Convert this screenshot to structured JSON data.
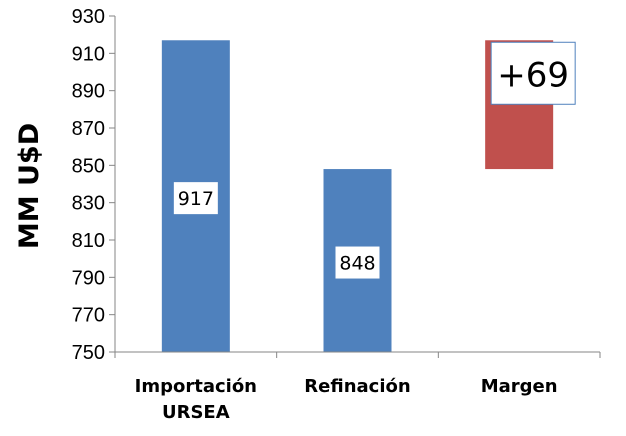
{
  "chart_data": {
    "type": "bar",
    "subtype": "waterfall",
    "title": "",
    "xlabel": "",
    "ylabel": "MM U$D",
    "ylim": [
      750,
      930
    ],
    "yticks": [
      750,
      770,
      790,
      810,
      830,
      850,
      870,
      890,
      910,
      930
    ],
    "grid": false,
    "legend": "none",
    "categories": [
      [
        "Importación",
        "URSEA"
      ],
      [
        "Refinación"
      ],
      [
        "Margen"
      ]
    ],
    "bars": [
      {
        "base": 750,
        "top": 917,
        "label": "917",
        "color": "#4f81bd"
      },
      {
        "base": 750,
        "top": 848,
        "label": "848",
        "color": "#4f81bd"
      },
      {
        "base": 848,
        "top": 917,
        "label": "+69",
        "color": "#c0504d"
      }
    ]
  }
}
